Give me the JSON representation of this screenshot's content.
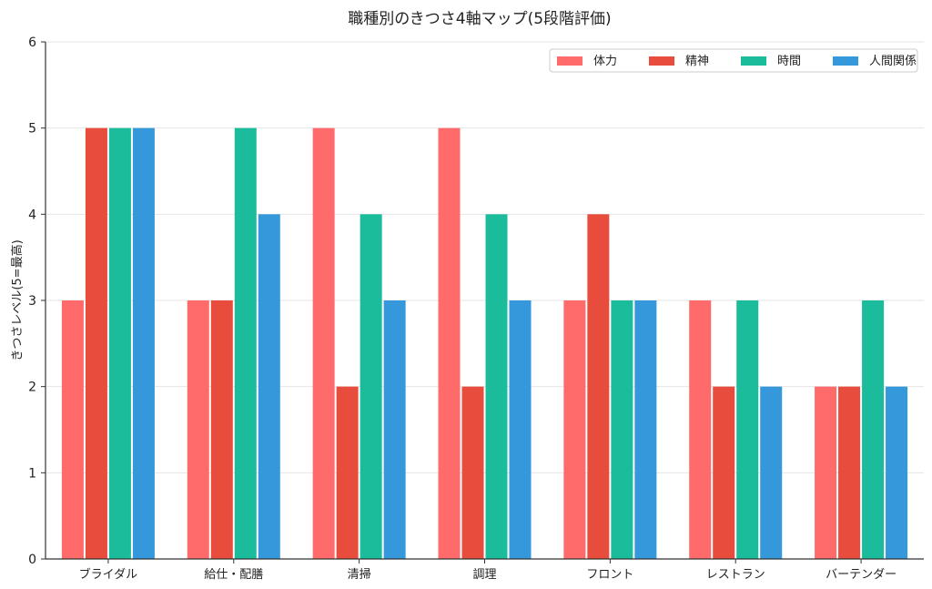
{
  "chart_data": {
    "type": "bar",
    "title": "職種別のきつさ4軸マップ(5段階評価)",
    "xlabel": "",
    "ylabel": "きつさレベル(5=最高)",
    "ylim": [
      0,
      6
    ],
    "yticks": [
      0,
      1,
      2,
      3,
      4,
      5,
      6
    ],
    "grid": "horizontal",
    "legend_position": "top-right",
    "categories": [
      "ブライダル",
      "給仕・配膳",
      "清掃",
      "調理",
      "フロント",
      "レストラン",
      "バーテンダー"
    ],
    "series": [
      {
        "name": "体力",
        "color": "#ff6b6b",
        "values": [
          3,
          3,
          5,
          5,
          3,
          3,
          2
        ]
      },
      {
        "name": "精神",
        "color": "#e74c3c",
        "values": [
          5,
          3,
          2,
          2,
          4,
          2,
          2
        ]
      },
      {
        "name": "時間",
        "color": "#1abc9c",
        "values": [
          5,
          5,
          4,
          4,
          3,
          3,
          3
        ]
      },
      {
        "name": "人間関係",
        "color": "#3498db",
        "values": [
          5,
          4,
          3,
          3,
          3,
          2,
          2
        ]
      }
    ]
  }
}
